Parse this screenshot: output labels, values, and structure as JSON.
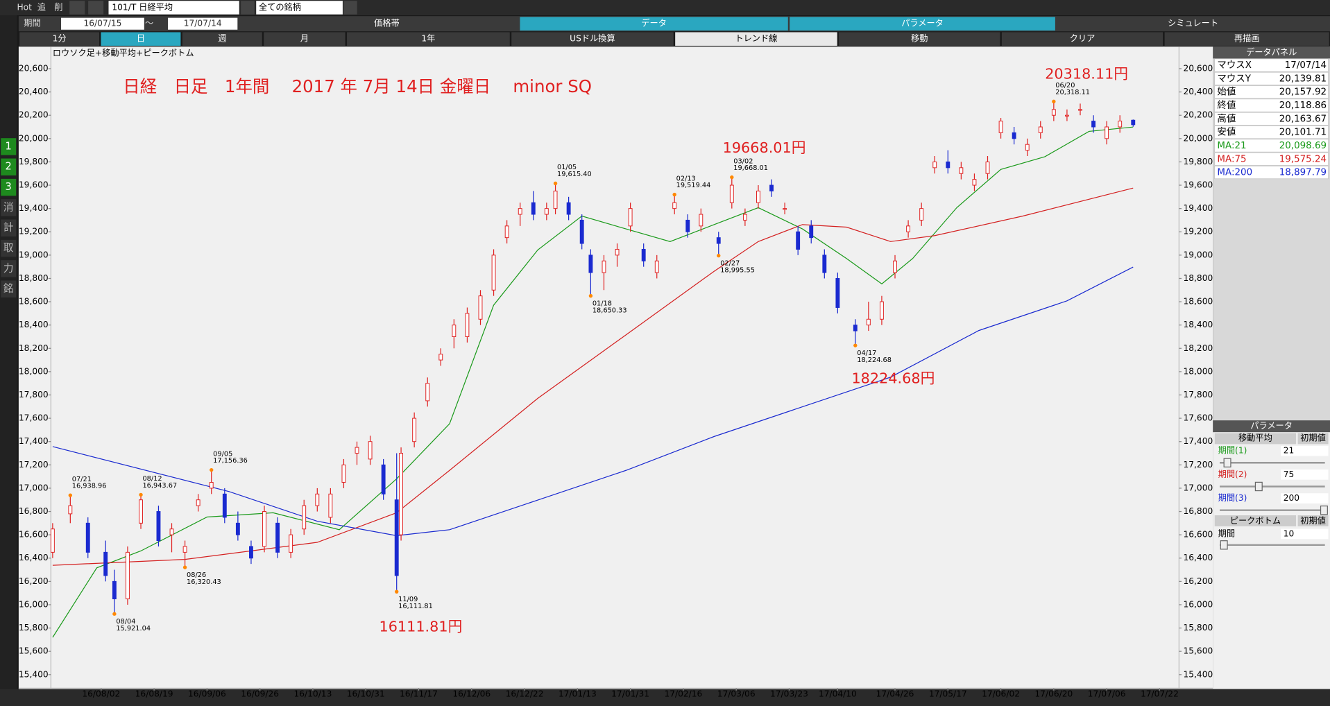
{
  "toolbar": {
    "hot": "Hot",
    "add": "追",
    "del": "削",
    "symbol": "101/T 日経平均",
    "market": "全ての銘柄",
    "period": "期間",
    "from": "16/07/15",
    "tilde": "～",
    "to": "17/07/14"
  },
  "tabs": [
    "価格帯",
    "データ",
    "パラメータ",
    "シミュレート"
  ],
  "ranges": [
    "1分",
    "日",
    "週",
    "月",
    "1年",
    "USドル換算",
    "トレンド線",
    "移動",
    "クリア",
    "再描画"
  ],
  "sidebar": [
    "1",
    "2",
    "3",
    "消",
    "計",
    "取",
    "力",
    "銘"
  ],
  "data_panel": {
    "title": "データパネル",
    "rows": [
      [
        "マウスX",
        "17/07/14"
      ],
      [
        "マウスY",
        "20,139.81"
      ],
      [
        "始値",
        "20,157.92"
      ],
      [
        "終値",
        "20,118.86"
      ],
      [
        "高値",
        "20,163.67"
      ],
      [
        "安値",
        "20,101.71"
      ],
      [
        "MA:21",
        "20,098.69"
      ],
      [
        "MA:75",
        "19,575.24"
      ],
      [
        "MA:200",
        "18,897.79"
      ]
    ]
  },
  "param_panel": {
    "title": "パラメータ",
    "ma_title": "移動平均",
    "ma_default": "初期値",
    "ma_rows": [
      [
        "期間(1)",
        21
      ],
      [
        "期間(2)",
        75
      ],
      [
        "期間(3)",
        200
      ]
    ],
    "pb_title": "ピークボトム",
    "pb_default": "初期値",
    "pb_rows": [
      [
        "期間",
        10
      ]
    ]
  },
  "chart_data": {
    "type": "candlestick",
    "label": "ロウソク足+移動平均+ピークボトム",
    "title": "日経　日足　1年間　 2017 年 7月 14日 金曜日　 minor SQ",
    "annotations": [
      "20318.11円",
      "19668.01円",
      "18224.68円",
      "16111.81円"
    ],
    "up_color": "#e02020",
    "down_color": "#1a2ad0",
    "x": [
      0,
      4,
      8,
      12,
      14,
      17,
      20,
      24,
      27,
      30,
      33,
      36,
      39,
      42,
      45,
      48,
      51,
      54,
      57,
      60,
      63,
      66,
      69,
      72,
      75,
      78,
      79,
      82,
      85,
      88,
      91,
      94,
      97,
      100,
      103,
      106,
      109,
      112,
      114,
      117,
      120,
      122,
      125,
      128,
      131,
      134,
      137,
      141,
      144,
      147,
      151,
      154,
      157,
      160,
      163,
      166,
      169,
      172,
      175,
      178,
      182,
      185,
      188,
      191,
      194,
      197,
      200,
      203,
      206,
      209,
      212,
      215,
      218,
      221,
      224,
      227,
      230,
      233,
      236,
      239,
      242,
      245
    ],
    "open": [
      16450,
      16780,
      16700,
      16450,
      16200,
      16050,
      16700,
      16800,
      16600,
      16450,
      16850,
      17000,
      16950,
      16700,
      16500,
      16500,
      16700,
      16450,
      16650,
      16850,
      16750,
      17050,
      17300,
      17250,
      17200,
      16900,
      16600,
      17400,
      17750,
      18100,
      18300,
      18300,
      18450,
      18700,
      19150,
      19350,
      19450,
      19350,
      19400,
      19450,
      19300,
      19000,
      18850,
      19000,
      19250,
      19050,
      18850,
      19400,
      19300,
      19250,
      19150,
      19450,
      19300,
      19450,
      19600,
      19400,
      19200,
      19250,
      19000,
      18800,
      18400,
      18400,
      18450,
      18850,
      19200,
      19300,
      19750,
      19800,
      19700,
      19600,
      19700,
      20050,
      20050,
      19900,
      20050,
      20200,
      20200,
      20250,
      20150,
      20000,
      20100,
      20157.92
    ],
    "high": [
      16700,
      16938.96,
      16750,
      16550,
      16300,
      16500,
      16943.67,
      16850,
      16700,
      16550,
      16950,
      17156.36,
      17000,
      16800,
      16550,
      16850,
      16750,
      16650,
      16900,
      17000,
      17000,
      17250,
      17400,
      17450,
      17250,
      17300,
      17350,
      17650,
      17950,
      18200,
      18450,
      18550,
      18700,
      19050,
      19300,
      19450,
      19550,
      19450,
      19615.4,
      19500,
      19350,
      19050,
      19000,
      19100,
      19450,
      19100,
      19000,
      19519.44,
      19350,
      19400,
      19200,
      19668.01,
      19400,
      19600,
      19650,
      19450,
      19250,
      19300,
      19050,
      18850,
      18450,
      18600,
      18650,
      19000,
      19300,
      19450,
      19850,
      19900,
      19800,
      19700,
      19850,
      20177,
      20100,
      20000,
      20150,
      20318.11,
      20250,
      20300,
      20200,
      20150,
      20200,
      20163.67
    ],
    "low": [
      16400,
      16700,
      16400,
      16200,
      15921.04,
      16000,
      16650,
      16500,
      16450,
      16320.43,
      16800,
      16950,
      16700,
      16550,
      16350,
      16450,
      16400,
      16400,
      16600,
      16800,
      16700,
      17000,
      17200,
      17200,
      16900,
      16111.81,
      16550,
      17350,
      17700,
      18050,
      18200,
      18250,
      18400,
      18650,
      19100,
      19250,
      19300,
      19300,
      19350,
      19300,
      19050,
      18650.33,
      18700,
      18900,
      19200,
      18900,
      18800,
      19350,
      19150,
      19200,
      18995.55,
      19400,
      19250,
      19400,
      19500,
      19350,
      19000,
      19100,
      18800,
      18500,
      18224.68,
      18350,
      18400,
      18800,
      19150,
      19250,
      19700,
      19700,
      19650,
      19550,
      19650,
      20000,
      19950,
      19850,
      20000,
      20150,
      20150,
      20200,
      20050,
      19950,
      20050,
      20101.71
    ],
    "close": [
      16650,
      16850,
      16450,
      16250,
      16050,
      16450,
      16900,
      16550,
      16650,
      16500,
      16900,
      17050,
      16750,
      16600,
      16400,
      16800,
      16450,
      16600,
      16850,
      16950,
      16950,
      17200,
      17350,
      17400,
      16950,
      16250,
      17300,
      17600,
      17900,
      18150,
      18400,
      18500,
      18650,
      19000,
      19250,
      19400,
      19350,
      19400,
      19550,
      19350,
      19100,
      18850,
      18950,
      19050,
      19400,
      18950,
      18950,
      19450,
      19200,
      19350,
      19100,
      19600,
      19350,
      19550,
      19550,
      19400,
      19050,
      19150,
      18850,
      18550,
      18350,
      18450,
      18600,
      18950,
      19250,
      19400,
      19800,
      19750,
      19750,
      19650,
      19800,
      20150,
      20000,
      19950,
      20100,
      20250,
      20200,
      20250,
      20100,
      20100,
      20150,
      20118.86
    ],
    "series": [
      {
        "name": "MA:21",
        "color": "#1a9a1a",
        "x": [
          0,
          10,
          20,
          35,
          50,
          65,
          78,
          90,
          100,
          110,
          120,
          130,
          140,
          150,
          160,
          170,
          180,
          188,
          195,
          205,
          215,
          225,
          235,
          245
        ],
        "values": [
          15720,
          16316,
          16462,
          16753,
          16789,
          16644,
          17080,
          17553,
          18571,
          19044,
          19335,
          19225,
          19116,
          19262,
          19407,
          19225,
          18971,
          18753,
          18971,
          19407,
          19735,
          19844,
          20062,
          20098.69
        ]
      },
      {
        "name": "MA:75",
        "color": "#d42020",
        "x": [
          0,
          30,
          60,
          78,
          90,
          110,
          130,
          150,
          160,
          170,
          180,
          190,
          200,
          220,
          245
        ],
        "values": [
          16338,
          16389,
          16535,
          16789,
          17153,
          17771,
          18316,
          18862,
          19116,
          19262,
          19240,
          19116,
          19167,
          19335,
          19575.24
        ]
      },
      {
        "name": "MA:200",
        "color": "#1a2ad0",
        "x": [
          0,
          40,
          60,
          78,
          90,
          110,
          130,
          150,
          170,
          190,
          210,
          230,
          245
        ],
        "values": [
          17357,
          16971,
          16716,
          16593,
          16644,
          16898,
          17153,
          17444,
          17698,
          17953,
          18353,
          18607,
          18897.79
        ]
      }
    ],
    "peaks": [
      {
        "label": "07/21",
        "value": 16938.96,
        "value_label": "16,938.96",
        "x": 4
      },
      {
        "label": "08/04",
        "value": 15921.04,
        "value_label": "15,921.04",
        "x": 14
      },
      {
        "label": "08/12",
        "value": 16943.67,
        "value_label": "16,943.67",
        "x": 20
      },
      {
        "label": "08/26",
        "value": 16320.43,
        "value_label": "16,320.43",
        "x": 30
      },
      {
        "label": "09/05",
        "value": 17156.36,
        "value_label": "17,156.36",
        "x": 36
      },
      {
        "label": "11/09",
        "value": 16111.81,
        "value_label": "16,111.81",
        "x": 78
      },
      {
        "label": "01/05",
        "value": 19615.4,
        "value_label": "19,615.40",
        "x": 114
      },
      {
        "label": "01/18",
        "value": 18650.33,
        "value_label": "18,650.33",
        "x": 122
      },
      {
        "label": "02/13",
        "value": 19519.44,
        "value_label": "19,519.44",
        "x": 141
      },
      {
        "label": "02/27",
        "value": 18995.55,
        "value_label": "18,995.55",
        "x": 151
      },
      {
        "label": "03/02",
        "value": 19668.01,
        "value_label": "19,668.01",
        "x": 154
      },
      {
        "label": "04/17",
        "value": 18224.68,
        "value_label": "18,224.68",
        "x": 182
      },
      {
        "label": "06/20",
        "value": 20318.11,
        "value_label": "20,318.11",
        "x": 227
      }
    ],
    "xlim": [
      -0.4,
      255.4
    ],
    "xticks": [
      {
        "value": 11,
        "label": "16/08/02"
      },
      {
        "value": 23,
        "label": "16/08/19"
      },
      {
        "value": 35,
        "label": "16/09/06"
      },
      {
        "value": 47,
        "label": "16/09/26"
      },
      {
        "value": 59,
        "label": "16/10/13"
      },
      {
        "value": 71,
        "label": "16/10/31"
      },
      {
        "value": 83,
        "label": "16/11/17"
      },
      {
        "value": 95,
        "label": "16/12/06"
      },
      {
        "value": 107,
        "label": "16/12/22"
      },
      {
        "value": 119,
        "label": "17/01/13"
      },
      {
        "value": 131,
        "label": "17/01/31"
      },
      {
        "value": 143,
        "label": "17/02/16"
      },
      {
        "value": 155,
        "label": "17/03/06"
      },
      {
        "value": 167,
        "label": "17/03/23"
      },
      {
        "value": 178,
        "label": "17/04/10"
      },
      {
        "value": 191,
        "label": "17/04/26"
      },
      {
        "value": 203,
        "label": "17/05/17"
      },
      {
        "value": 215,
        "label": "17/06/02"
      },
      {
        "value": 227,
        "label": "17/06/20"
      },
      {
        "value": 239,
        "label": "17/07/06"
      },
      {
        "value": 251,
        "label": "17/07/22"
      }
    ],
    "ylim": [
      15300,
      20700
    ],
    "yticks": [
      {
        "value": 15400,
        "label": "15,400"
      },
      {
        "value": 15600,
        "label": "15,600"
      },
      {
        "value": 15800,
        "label": "15,800"
      },
      {
        "value": 16000,
        "label": "16,000"
      },
      {
        "value": 16200,
        "label": "16,200"
      },
      {
        "value": 16400,
        "label": "16,400"
      },
      {
        "value": 16600,
        "label": "16,600"
      },
      {
        "value": 16800,
        "label": "16,800"
      },
      {
        "value": 17000,
        "label": "17,000"
      },
      {
        "value": 17200,
        "label": "17,200"
      },
      {
        "value": 17400,
        "label": "17,400"
      },
      {
        "value": 17600,
        "label": "17,600"
      },
      {
        "value": 17800,
        "label": "17,800"
      },
      {
        "value": 18000,
        "label": "18,000"
      },
      {
        "value": 18200,
        "label": "18,200"
      },
      {
        "value": 18400,
        "label": "18,400"
      },
      {
        "value": 18600,
        "label": "18,600"
      },
      {
        "value": 18800,
        "label": "18,800"
      },
      {
        "value": 19000,
        "label": "19,000"
      },
      {
        "value": 19200,
        "label": "19,200"
      },
      {
        "value": 19400,
        "label": "19,400"
      },
      {
        "value": 19600,
        "label": "19,600"
      },
      {
        "value": 19800,
        "label": "19,800"
      },
      {
        "value": 20000,
        "label": "20,000"
      },
      {
        "value": 20200,
        "label": "20,200"
      },
      {
        "value": 20400,
        "label": "20,400"
      },
      {
        "value": 20600,
        "label": "20,600"
      }
    ]
  }
}
